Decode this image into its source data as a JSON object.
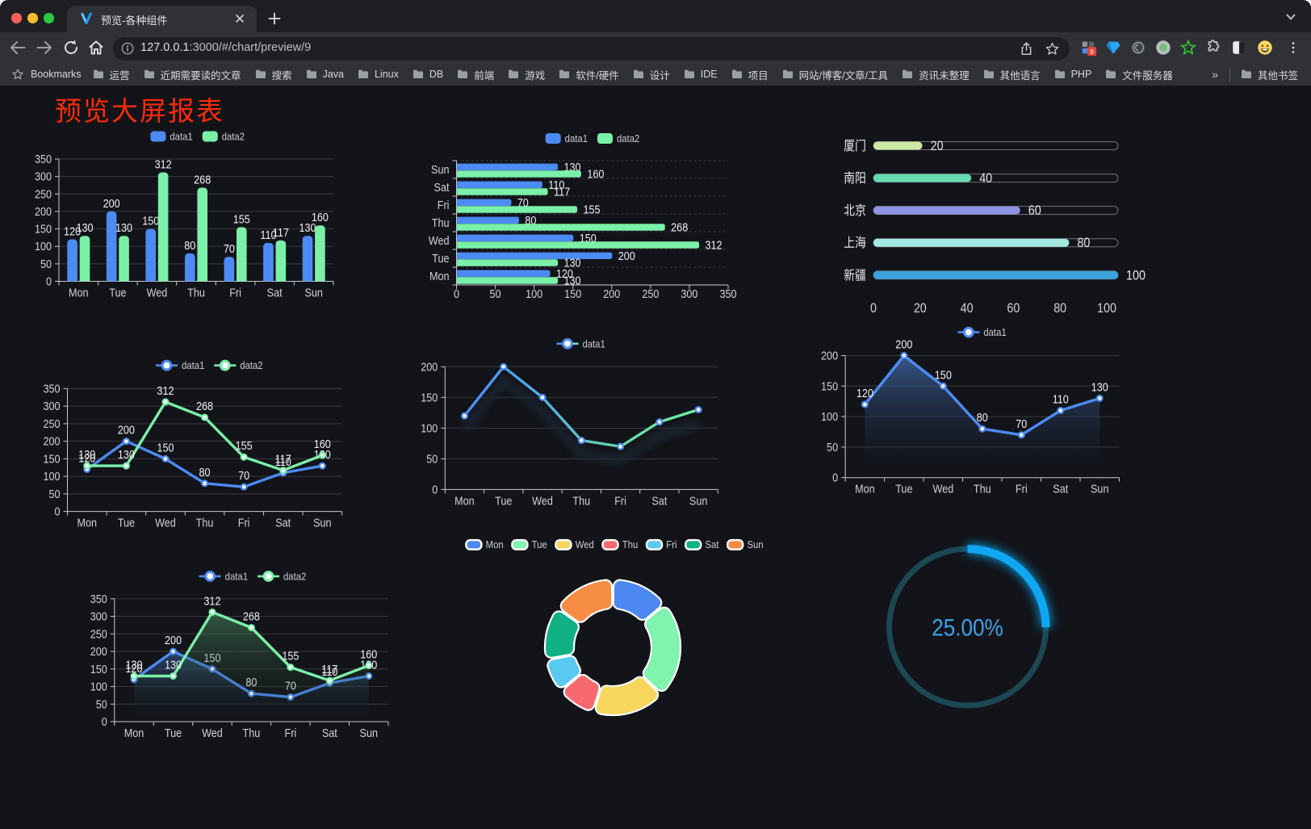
{
  "browser": {
    "window_controls": [
      "close",
      "minimize",
      "zoom"
    ],
    "tab": {
      "title": "预览-各种组件",
      "close_label": "×",
      "new_tab_label": "+"
    },
    "url": {
      "host": "127.0.0.1",
      "rest": ":3000/#/chart/preview/9"
    },
    "bookmarks_bar": {
      "bookmarks_label": "Bookmarks",
      "items": [
        "运营",
        "近期需要读的文章",
        "搜索",
        "Java",
        "Linux",
        "DB",
        "前端",
        "游戏",
        "软件/硬件",
        "设计",
        "IDE",
        "项目",
        "网站/博客/文章/工具",
        "资讯未整理",
        "其他语言",
        "PHP",
        "文件服务器"
      ],
      "overflow_label": "»",
      "other_bookmarks_label": "其他书签"
    },
    "extensions_badge": "9"
  },
  "page": {
    "title": "预览大屏报表",
    "title_color": "#fb2b09",
    "background": "#131419"
  },
  "theme": {
    "series_blue": "#4c8bf4",
    "series_green": "#7bf0a8",
    "axis_line": "#c9cad0",
    "axis_label": "#d2d3d9",
    "grid_line": "#3a3b43",
    "value_label": "#eef0f4",
    "legend_text": "#cccdd3"
  },
  "chart_data": [
    {
      "type": "bar",
      "orientation": "vertical",
      "categories": [
        "Mon",
        "Tue",
        "Wed",
        "Thu",
        "Fri",
        "Sat",
        "Sun"
      ],
      "series": [
        {
          "name": "data1",
          "color": "#4c8bf4",
          "values": [
            120,
            200,
            150,
            80,
            70,
            110,
            130
          ]
        },
        {
          "name": "data2",
          "color": "#7bf0a8",
          "values": [
            130,
            130,
            312,
            268,
            155,
            117,
            160
          ]
        }
      ],
      "ylim": [
        0,
        350
      ],
      "ytick": 50,
      "legend_position": "top",
      "grid": true,
      "value_labels": true
    },
    {
      "type": "bar",
      "orientation": "horizontal",
      "categories": [
        "Mon",
        "Tue",
        "Wed",
        "Thu",
        "Fri",
        "Sat",
        "Sun"
      ],
      "series": [
        {
          "name": "data1",
          "color": "#4c8bf4",
          "values": [
            120,
            200,
            150,
            80,
            70,
            110,
            130
          ]
        },
        {
          "name": "data2",
          "color": "#7bf0a8",
          "values": [
            130,
            130,
            312,
            268,
            155,
            117,
            160
          ]
        }
      ],
      "xlim": [
        0,
        350
      ],
      "xtick": 50,
      "legend_position": "top",
      "grid": false,
      "value_labels": true
    },
    {
      "type": "bar",
      "subtype": "progress",
      "categories": [
        "厦门",
        "南阳",
        "北京",
        "上海",
        "新疆"
      ],
      "values": [
        20,
        40,
        60,
        80,
        100
      ],
      "colors": [
        "#cbe8a5",
        "#66dcb2",
        "#9094e4",
        "#a5e8e2",
        "#3aa3da"
      ],
      "xlim": [
        0,
        100
      ],
      "xticks": [
        0,
        20,
        40,
        60,
        80,
        100
      ],
      "value_labels": true
    },
    {
      "type": "line",
      "categories": [
        "Mon",
        "Tue",
        "Wed",
        "Thu",
        "Fri",
        "Sat",
        "Sun"
      ],
      "series": [
        {
          "name": "data1",
          "color": "#4c8bf4",
          "values": [
            120,
            200,
            150,
            80,
            70,
            110,
            130
          ]
        },
        {
          "name": "data2",
          "color": "#7bf0a8",
          "values": [
            130,
            130,
            312,
            268,
            155,
            117,
            160
          ]
        }
      ],
      "ylim": [
        0,
        350
      ],
      "ytick": 50,
      "legend_position": "top",
      "grid": true,
      "value_labels": true
    },
    {
      "type": "line",
      "categories": [
        "Mon",
        "Tue",
        "Wed",
        "Thu",
        "Fri",
        "Sat",
        "Sun"
      ],
      "series": [
        {
          "name": "data1",
          "colors": [
            "#4a8bf5",
            "#53b0e3",
            "#63d6ae",
            "#74ee9e"
          ],
          "color": "#4c8bf4",
          "values": [
            120,
            200,
            150,
            80,
            70,
            110,
            130
          ]
        }
      ],
      "ylim": [
        0,
        200
      ],
      "ytick": 50,
      "legend_position": "top",
      "grid": true,
      "value_labels": false,
      "gradient_stroke": true,
      "shadow": true
    },
    {
      "type": "area",
      "categories": [
        "Mon",
        "Tue",
        "Wed",
        "Thu",
        "Fri",
        "Sat",
        "Sun"
      ],
      "series": [
        {
          "name": "data1",
          "color": "#4c8bf4",
          "area_top": "rgba(70,115,185,0.72)",
          "area_bottom": "rgba(15,20,32,0.03)",
          "values": [
            120,
            200,
            150,
            80,
            70,
            110,
            130
          ]
        }
      ],
      "ylim": [
        0,
        200
      ],
      "ytick": 50,
      "legend_position": "top",
      "grid": true,
      "value_labels": true
    },
    {
      "type": "area",
      "categories": [
        "Mon",
        "Tue",
        "Wed",
        "Thu",
        "Fri",
        "Sat",
        "Sun"
      ],
      "series": [
        {
          "name": "data1",
          "color": "#4c8bf4",
          "area_top": "rgba(62,105,170,0.55)",
          "area_bottom": "rgba(15,20,32,0.02)",
          "values": [
            120,
            200,
            150,
            80,
            70,
            110,
            130
          ]
        },
        {
          "name": "data2",
          "color": "#7bf0a8",
          "area_top": "rgba(80,160,110,0.5)",
          "area_bottom": "rgba(15,25,20,0.02)",
          "values": [
            130,
            130,
            312,
            268,
            155,
            117,
            160
          ]
        }
      ],
      "ylim": [
        0,
        350
      ],
      "ytick": 50,
      "legend_position": "top",
      "grid": true,
      "value_labels": true
    },
    {
      "type": "pie",
      "subtype": "donut",
      "categories": [
        "Mon",
        "Tue",
        "Wed",
        "Thu",
        "Fri",
        "Sat",
        "Sun"
      ],
      "values": [
        120,
        200,
        150,
        80,
        70,
        110,
        130
      ],
      "colors": [
        "#4d87f0",
        "#80f3ae",
        "#f6d65c",
        "#f8696f",
        "#59c9f2",
        "#10b184",
        "#f78c44"
      ],
      "border_color": "#ffffff",
      "legend_position": "top"
    },
    {
      "type": "gauge",
      "subtype": "progress-circle",
      "value": 25,
      "max": 100,
      "label": "25.00%",
      "label_color": "#3fa2e8",
      "arc_color": "#10a7f2",
      "track_color": "#1c4754"
    }
  ]
}
